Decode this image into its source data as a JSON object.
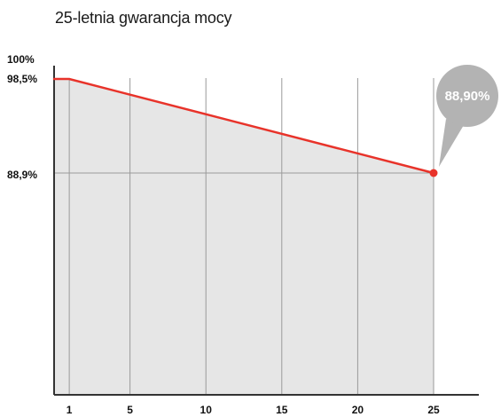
{
  "chart_data": {
    "type": "area",
    "title": "25-letnia gwarancja mocy",
    "xlabel": "",
    "ylabel": "",
    "x": [
      0,
      1,
      25
    ],
    "values": [
      98.5,
      98.5,
      88.9
    ],
    "xlim": [
      0,
      25
    ],
    "ylim": [
      80,
      100
    ],
    "x_ticks": [
      1,
      5,
      10,
      15,
      20,
      25
    ],
    "x_tick_labels": [
      "1",
      "5",
      "10",
      "15",
      "20",
      "25"
    ],
    "y_tick_values": [
      100,
      98.5,
      88.9
    ],
    "y_tick_labels": [
      "100%",
      "98,5%",
      "88,9%"
    ],
    "callout": "88,90%",
    "grid": true,
    "colors": {
      "line": "#e8332a",
      "fill": "#e6e6e6",
      "grid": "#9a9a9a",
      "axis": "#333333",
      "callout_bubble": "#b3b3b3",
      "callout_text": "#ffffff"
    }
  }
}
